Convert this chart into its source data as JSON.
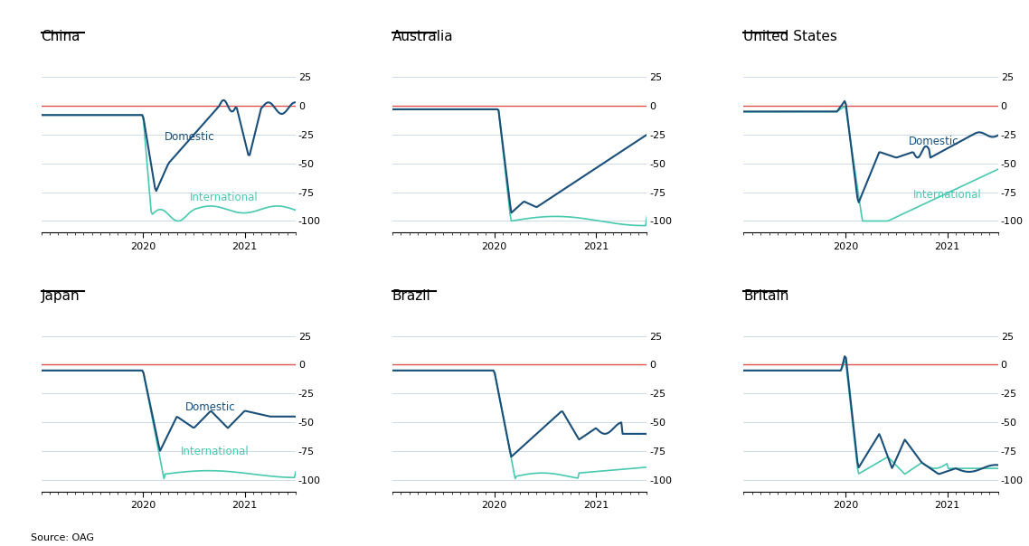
{
  "panels": [
    {
      "title": "China",
      "row": 0,
      "col": 0,
      "has_domestic_label": true,
      "has_intl_label": true
    },
    {
      "title": "Australia",
      "row": 0,
      "col": 1,
      "has_domestic_label": false,
      "has_intl_label": false
    },
    {
      "title": "United States",
      "row": 0,
      "col": 2,
      "has_domestic_label": true,
      "has_intl_label": true
    },
    {
      "title": "Japan",
      "row": 1,
      "col": 0,
      "has_domestic_label": true,
      "has_intl_label": true
    },
    {
      "title": "Brazil",
      "row": 1,
      "col": 1,
      "has_domestic_label": false,
      "has_intl_label": false
    },
    {
      "title": "Britain",
      "row": 1,
      "col": 2,
      "has_domestic_label": false,
      "has_intl_label": false
    }
  ],
  "ylim": [
    -110,
    35
  ],
  "yticks": [
    25,
    0,
    -25,
    -50,
    -75,
    -100
  ],
  "domestic_color": "#1a4f7a",
  "intl_color": "#48c9b0",
  "redline_color": "#e05252",
  "gridline_color": "#c5d5e8",
  "bg_color": "#ffffff",
  "source_text": "Source: OAG",
  "title_fontsize": 11,
  "label_fontsize": 8.5,
  "tick_fontsize": 8
}
